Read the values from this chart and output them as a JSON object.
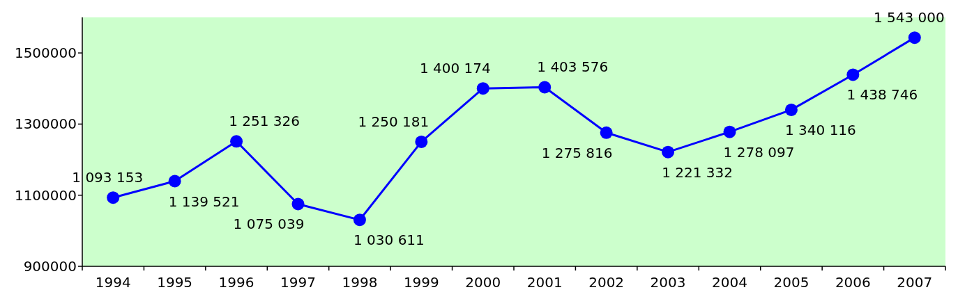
{
  "chart_data": {
    "type": "line",
    "categories": [
      "1994",
      "1995",
      "1996",
      "1997",
      "1998",
      "1999",
      "2000",
      "2001",
      "2002",
      "2003",
      "2004",
      "2005",
      "2006",
      "2007"
    ],
    "series": [
      {
        "color": "#0000ff",
        "values": [
          1093153,
          1139521,
          1251326,
          1075039,
          1030611,
          1250181,
          1400174,
          1403576,
          1275816,
          1221332,
          1278097,
          1340116,
          1438746,
          1543000
        ],
        "value_labels": [
          "1 093 153",
          "1 139 521",
          "1 251 326",
          "1 075 039",
          "1 030 611",
          "1 250 181",
          "1 400 174",
          "1 403 576",
          "1 275 816",
          "1 221 332",
          "1 278 097",
          "1 340 116",
          "1 438 746",
          "1 543 000"
        ]
      }
    ],
    "ylim": [
      900000,
      1600000
    ],
    "yticks": [
      900000,
      1100000,
      1300000,
      1500000
    ],
    "grid": false,
    "marker": "circle",
    "line_style": "solid"
  }
}
